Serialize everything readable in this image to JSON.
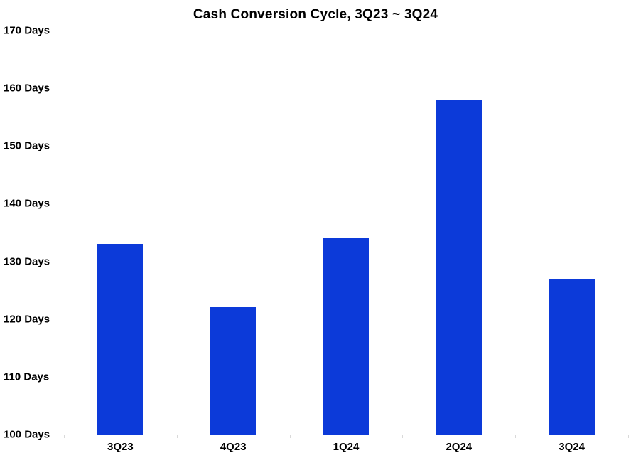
{
  "chart_data": {
    "type": "bar",
    "title": "Cash Conversion Cycle, 3Q23 ~ 3Q24",
    "categories": [
      "3Q23",
      "4Q23",
      "1Q24",
      "2Q24",
      "3Q24"
    ],
    "values": [
      133,
      122,
      134,
      158,
      127
    ],
    "xlabel": "",
    "ylabel": "",
    "ylim": [
      100,
      170
    ],
    "ytick_step": 10,
    "ytick_suffix": " Days",
    "grid": false,
    "legend_position": "none",
    "bar_color": "#0c3ad9",
    "axis_color": "#d9d9d9",
    "text_color": "#000000"
  }
}
